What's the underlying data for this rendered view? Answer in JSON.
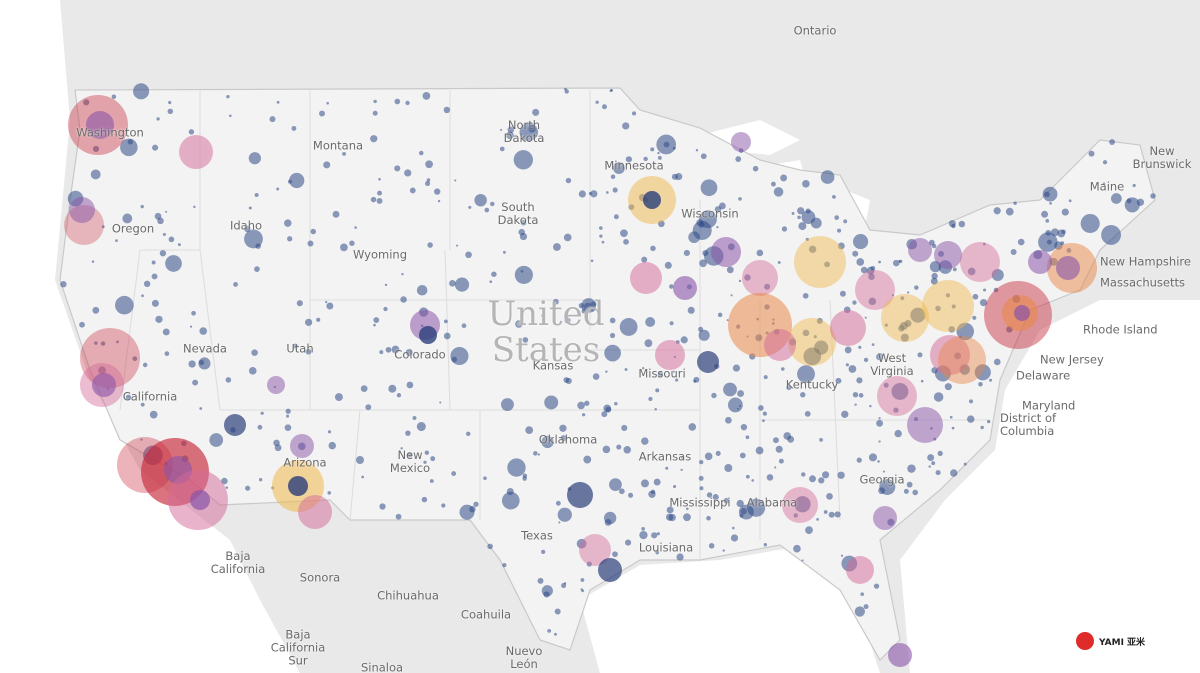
{
  "labels": [
    "Ontario",
    "Washington",
    "Montana",
    "North Dakota",
    "Minnesota",
    "South Dakota",
    "Wisconsin",
    "Oregon",
    "Idaho",
    "Wyoming",
    "United States",
    "Nevada",
    "Utah",
    "Colorado",
    "Kansas",
    "Missouri",
    "California",
    "Kentucky",
    "West Virginia",
    "Arizona",
    "New Mexico",
    "Oklahoma",
    "Arkansas",
    "Texas",
    "Mississippi",
    "Alabama",
    "Louisiana",
    "Georgia",
    "Maine",
    "New Brunswick",
    "New Hampshire",
    "Massachusetts",
    "Rhode Island",
    "New Jersey",
    "Delaware",
    "Maryland",
    "District of Columbia",
    "Baja California",
    "Sonora",
    "Chihuahua",
    "Coahuila",
    "Baja California Sur",
    "Sinaloa",
    "Nuevo León"
  ],
  "logo": "YAMI 亚米"
}
